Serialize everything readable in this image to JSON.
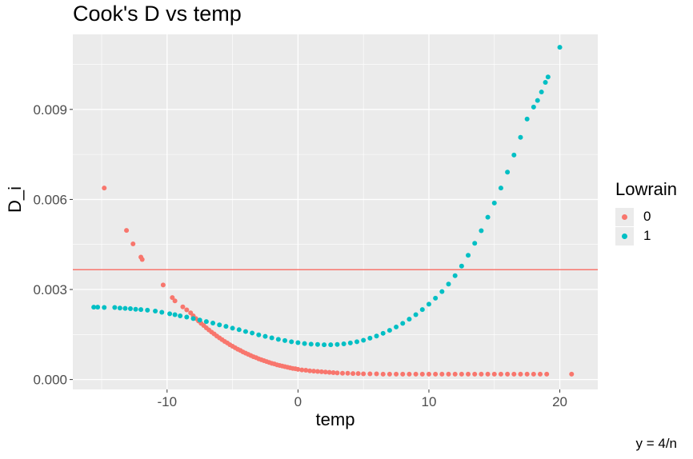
{
  "chart_data": {
    "type": "scatter",
    "title": "Cook's D vs temp",
    "xlabel": "temp",
    "ylabel": "D_i",
    "caption": "y = 4/n",
    "xlim": [
      -17.2,
      22.9
    ],
    "ylim": [
      -0.00033,
      0.0115
    ],
    "x_ticks": [
      -10,
      0,
      10,
      20
    ],
    "y_ticks": [
      0.0,
      0.003,
      0.006,
      0.009
    ],
    "x_tick_labels": [
      "-10",
      "0",
      "10",
      "20"
    ],
    "y_tick_labels": [
      "0.000",
      "0.003",
      "0.006",
      "0.009"
    ],
    "grid": true,
    "legend": {
      "title": "Lowrain",
      "position": "right"
    },
    "hline": {
      "y": 0.00366,
      "color": "#f8766d"
    },
    "series": [
      {
        "name": "0",
        "color": "#f8766d",
        "points": [
          [
            -14.8,
            0.00638
          ],
          [
            -13.1,
            0.00497
          ],
          [
            -12.6,
            0.00452
          ],
          [
            -12.0,
            0.00408
          ],
          [
            -11.9,
            0.004
          ],
          [
            -10.3,
            0.00315
          ],
          [
            -9.6,
            0.00273
          ],
          [
            -9.4,
            0.00262
          ],
          [
            -8.8,
            0.00242
          ],
          [
            -8.5,
            0.00232
          ],
          [
            -8.2,
            0.00222
          ],
          [
            -8.0,
            0.00212
          ],
          [
            -7.8,
            0.00203
          ],
          [
            -7.6,
            0.00195
          ],
          [
            -7.4,
            0.00187
          ],
          [
            -7.2,
            0.0018
          ],
          [
            -7.0,
            0.00172
          ],
          [
            -6.8,
            0.00165
          ],
          [
            -6.6,
            0.00158
          ],
          [
            -6.4,
            0.00152
          ],
          [
            -6.2,
            0.00145
          ],
          [
            -6.0,
            0.00139
          ],
          [
            -5.8,
            0.00133
          ],
          [
            -5.6,
            0.00127
          ],
          [
            -5.4,
            0.00122
          ],
          [
            -5.2,
            0.00116
          ],
          [
            -5.0,
            0.00111
          ],
          [
            -4.8,
            0.00106
          ],
          [
            -4.6,
            0.00101
          ],
          [
            -4.4,
            0.00097
          ],
          [
            -4.2,
            0.00092
          ],
          [
            -4.0,
            0.00088
          ],
          [
            -3.8,
            0.00084
          ],
          [
            -3.6,
            0.0008
          ],
          [
            -3.4,
            0.00076
          ],
          [
            -3.2,
            0.00073
          ],
          [
            -3.0,
            0.00069
          ],
          [
            -2.8,
            0.00066
          ],
          [
            -2.6,
            0.00063
          ],
          [
            -2.4,
            0.0006
          ],
          [
            -2.2,
            0.00057
          ],
          [
            -2.0,
            0.00054
          ],
          [
            -1.8,
            0.00052
          ],
          [
            -1.6,
            0.00049
          ],
          [
            -1.4,
            0.00047
          ],
          [
            -1.2,
            0.00045
          ],
          [
            -1.0,
            0.00043
          ],
          [
            -0.8,
            0.00041
          ],
          [
            -0.6,
            0.00039
          ],
          [
            -0.4,
            0.00037
          ],
          [
            -0.2,
            0.00036
          ],
          [
            0.0,
            0.00034
          ],
          [
            0.3,
            0.00032
          ],
          [
            0.6,
            0.00031
          ],
          [
            0.9,
            0.00029
          ],
          [
            1.2,
            0.00028
          ],
          [
            1.5,
            0.00027
          ],
          [
            1.8,
            0.00026
          ],
          [
            2.1,
            0.00025
          ],
          [
            2.4,
            0.00024
          ],
          [
            2.7,
            0.00023
          ],
          [
            3.0,
            0.00022
          ],
          [
            3.4,
            0.00021
          ],
          [
            3.8,
            0.00021
          ],
          [
            4.2,
            0.0002
          ],
          [
            4.6,
            0.0002
          ],
          [
            5.0,
            0.00019
          ],
          [
            5.5,
            0.00019
          ],
          [
            6.0,
            0.00019
          ],
          [
            6.5,
            0.00018
          ],
          [
            7.0,
            0.00018
          ],
          [
            7.5,
            0.00018
          ],
          [
            8.0,
            0.00018
          ],
          [
            8.5,
            0.00018
          ],
          [
            9.0,
            0.00018
          ],
          [
            9.5,
            0.00018
          ],
          [
            10.0,
            0.00018
          ],
          [
            10.5,
            0.00018
          ],
          [
            11.0,
            0.00018
          ],
          [
            11.5,
            0.00018
          ],
          [
            12.0,
            0.00018
          ],
          [
            12.5,
            0.00018
          ],
          [
            13.0,
            0.00018
          ],
          [
            13.5,
            0.00018
          ],
          [
            14.0,
            0.00018
          ],
          [
            14.5,
            0.00018
          ],
          [
            15.0,
            0.00018
          ],
          [
            15.5,
            0.00018
          ],
          [
            16.0,
            0.00018
          ],
          [
            16.5,
            0.00018
          ],
          [
            17.0,
            0.00018
          ],
          [
            17.5,
            0.00018
          ],
          [
            18.0,
            0.00018
          ],
          [
            18.5,
            0.00018
          ],
          [
            19.0,
            0.00018
          ],
          [
            20.9,
            0.00018
          ]
        ]
      },
      {
        "name": "1",
        "color": "#00bfc4",
        "points": [
          [
            -15.6,
            0.00241
          ],
          [
            -15.3,
            0.00241
          ],
          [
            -14.8,
            0.0024
          ],
          [
            -14.0,
            0.0024
          ],
          [
            -13.6,
            0.00238
          ],
          [
            -13.2,
            0.00237
          ],
          [
            -12.8,
            0.00236
          ],
          [
            -12.4,
            0.00234
          ],
          [
            -12.0,
            0.00233
          ],
          [
            -11.5,
            0.00231
          ],
          [
            -10.9,
            0.00228
          ],
          [
            -10.4,
            0.00224
          ],
          [
            -9.8,
            0.00219
          ],
          [
            -9.4,
            0.00216
          ],
          [
            -9.0,
            0.00212
          ],
          [
            -8.5,
            0.00208
          ],
          [
            -8.0,
            0.00203
          ],
          [
            -7.5,
            0.00198
          ],
          [
            -7.0,
            0.00193
          ],
          [
            -6.5,
            0.00188
          ],
          [
            -6.0,
            0.00182
          ],
          [
            -5.5,
            0.00177
          ],
          [
            -5.0,
            0.00171
          ],
          [
            -4.5,
            0.00166
          ],
          [
            -4.0,
            0.0016
          ],
          [
            -3.5,
            0.00155
          ],
          [
            -3.0,
            0.00149
          ],
          [
            -2.5,
            0.00144
          ],
          [
            -2.0,
            0.00139
          ],
          [
            -1.5,
            0.00134
          ],
          [
            -1.0,
            0.0013
          ],
          [
            -0.5,
            0.00126
          ],
          [
            0.0,
            0.00123
          ],
          [
            0.5,
            0.0012
          ],
          [
            1.0,
            0.00118
          ],
          [
            1.5,
            0.00117
          ],
          [
            2.0,
            0.00116
          ],
          [
            2.5,
            0.00116
          ],
          [
            3.0,
            0.00117
          ],
          [
            3.5,
            0.00119
          ],
          [
            4.0,
            0.00122
          ],
          [
            4.5,
            0.00126
          ],
          [
            5.0,
            0.00131
          ],
          [
            5.5,
            0.00138
          ],
          [
            6.0,
            0.00145
          ],
          [
            6.5,
            0.00154
          ],
          [
            7.0,
            0.00164
          ],
          [
            7.5,
            0.00175
          ],
          [
            8.0,
            0.00187
          ],
          [
            8.5,
            0.00201
          ],
          [
            9.0,
            0.00216
          ],
          [
            9.5,
            0.00233
          ],
          [
            10.0,
            0.00251
          ],
          [
            10.5,
            0.00271
          ],
          [
            11.0,
            0.00293
          ],
          [
            11.5,
            0.00318
          ],
          [
            12.0,
            0.00346
          ],
          [
            12.5,
            0.00378
          ],
          [
            13.0,
            0.00414
          ],
          [
            13.5,
            0.00454
          ],
          [
            14.0,
            0.00496
          ],
          [
            14.5,
            0.00541
          ],
          [
            15.0,
            0.00588
          ],
          [
            15.5,
            0.00638
          ],
          [
            16.0,
            0.00691
          ],
          [
            16.5,
            0.00748
          ],
          [
            17.0,
            0.00807
          ],
          [
            17.5,
            0.00868
          ],
          [
            18.0,
            0.00908
          ],
          [
            18.3,
            0.0093
          ],
          [
            18.6,
            0.00958
          ],
          [
            18.9,
            0.0099
          ],
          [
            19.1,
            0.01008
          ],
          [
            20.0,
            0.01107
          ]
        ]
      }
    ]
  }
}
